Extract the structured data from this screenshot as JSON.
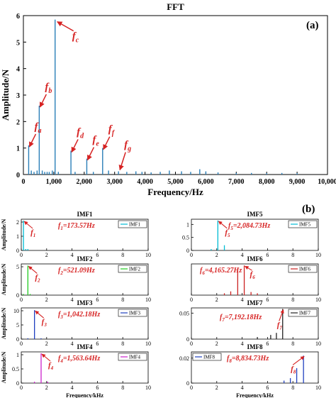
{
  "panel_a_tag": "(a)",
  "panel_b_tag": "(b)",
  "colors": {
    "fft": "#2a7fb8",
    "annotation": "#d62222",
    "imf1": "#00bcd4",
    "imf2": "#22cc22",
    "imf3": "#1f3fbf",
    "imf4": "#cc22cc",
    "imf5": "#00bcd4",
    "imf6": "#cc2222",
    "imf7": "#222222",
    "imf8": "#1f3fbf"
  },
  "chart_data": [
    {
      "type": "bar",
      "title": "FFT",
      "xlabel": "Frequency/Hz",
      "ylabel": "Amplitude/N",
      "xlim": [
        0,
        10000
      ],
      "ylim": [
        0,
        6
      ],
      "xticks": [
        0,
        1000,
        2000,
        3000,
        4000,
        5000,
        6000,
        7000,
        8000,
        9000,
        10000
      ],
      "xtick_labels": [
        "0",
        "1,000",
        "2,000",
        "3,000",
        "4,000",
        "5,000",
        "6,000",
        "7,000",
        "8,000",
        "9,000",
        "10,000"
      ],
      "yticks": [
        0,
        1,
        2,
        3,
        4,
        5,
        6
      ],
      "x": [
        173.57,
        260,
        350,
        450,
        521.09,
        620,
        700,
        780,
        850,
        950,
        1042.18,
        1150,
        1563.64,
        1700,
        2084.73,
        2300,
        2605.5,
        2800,
        3126.5,
        3400,
        3700,
        3900,
        4200,
        4500,
        4800,
        5200,
        5500,
        5800,
        6000,
        6400,
        7000,
        7500,
        8000,
        8500,
        9000
      ],
      "y": [
        1.1,
        0.15,
        0.1,
        0.15,
        2.6,
        0.15,
        0.1,
        0.1,
        0.1,
        0.15,
        5.85,
        0.1,
        0.9,
        0.1,
        0.6,
        0.1,
        1.0,
        0.15,
        0.12,
        0.1,
        0.12,
        0.1,
        0.08,
        0.1,
        0.15,
        0.12,
        0.1,
        0.2,
        0.12,
        0.08,
        0.06,
        0.06,
        0.05,
        0.06,
        0.05
      ],
      "annotations": [
        {
          "label": "f",
          "sub": "a",
          "x": 173.57,
          "y": 1.1
        },
        {
          "label": "f",
          "sub": "b",
          "x": 521.09,
          "y": 2.6
        },
        {
          "label": "f",
          "sub": "c",
          "x": 1042.18,
          "y": 5.85
        },
        {
          "label": "f",
          "sub": "d",
          "x": 1563.64,
          "y": 0.9
        },
        {
          "label": "f",
          "sub": "e",
          "x": 2084.73,
          "y": 0.6
        },
        {
          "label": "f",
          "sub": "f",
          "x": 2605.5,
          "y": 1.0
        },
        {
          "label": "f",
          "sub": "g",
          "x": 3126.5,
          "y": 0.12
        }
      ]
    },
    {
      "type": "bar",
      "title": "IMF1",
      "legend": "IMF1",
      "ylabel": "Amplitude/N",
      "xlim": [
        0,
        10
      ],
      "ylim": [
        0,
        2.2
      ],
      "yticks": [
        0,
        1,
        2
      ],
      "xticks": [
        0,
        2,
        4,
        6,
        8,
        10
      ],
      "xtick_labels": [
        "0",
        "2",
        "4",
        "6",
        "8",
        "10"
      ],
      "x": [
        0.17357,
        0.35,
        0.52
      ],
      "y": [
        2.1,
        0.1,
        0.1
      ],
      "annot_label": "f",
      "annot_sub": "1",
      "freq_text": "=173.57Hz",
      "peak_x": 0.17357,
      "peak_y": 2.1
    },
    {
      "type": "bar",
      "title": "IMF2",
      "legend": "IMF2",
      "ylabel": "Amplitude/N",
      "xlim": [
        0,
        10
      ],
      "ylim": [
        0,
        5.5
      ],
      "yticks": [
        0,
        5
      ],
      "xticks": [
        0,
        2,
        4,
        6,
        8,
        10
      ],
      "xtick_labels": [
        "0",
        "2",
        "4",
        "6",
        "8",
        "10"
      ],
      "x": [
        0.17,
        0.52109,
        0.7
      ],
      "y": [
        0.2,
        5.2,
        0.2
      ],
      "annot_label": "f",
      "annot_sub": "2",
      "freq_text": "=521.09Hz",
      "peak_x": 0.52109,
      "peak_y": 5.2
    },
    {
      "type": "bar",
      "title": "IMF3",
      "legend": "IMF3",
      "ylabel": "Amplitude/N",
      "xlim": [
        0,
        10
      ],
      "ylim": [
        0,
        11
      ],
      "yticks": [
        0,
        5,
        10
      ],
      "xticks": [
        0,
        2,
        4,
        6,
        8,
        10
      ],
      "xtick_labels": [
        "0",
        "2",
        "4",
        "6",
        "8",
        "10"
      ],
      "x": [
        0.52,
        1.04218,
        1.56
      ],
      "y": [
        0.3,
        10.2,
        0.3
      ],
      "annot_label": "f",
      "annot_sub": "3",
      "freq_text": "=1,042.18Hz",
      "peak_x": 1.04218,
      "peak_y": 10.2
    },
    {
      "type": "bar",
      "title": "IMF4",
      "legend": "IMF4",
      "ylabel": "Amplitude/N",
      "xlim": [
        0,
        10
      ],
      "ylim": [
        0,
        1.1
      ],
      "yticks": [
        0,
        0.5,
        1
      ],
      "xticks": [
        0,
        2,
        4,
        6,
        8,
        10
      ],
      "xtick_labels": [
        "0",
        "2",
        "4",
        "6",
        "8",
        "10"
      ],
      "xlabel": "Frequency/kHz",
      "x": [
        1.04,
        1.56364,
        2.08
      ],
      "y": [
        0.05,
        1.05,
        0.05
      ],
      "annot_label": "f",
      "annot_sub": "4",
      "freq_text": "=1,563.64Hz",
      "peak_x": 1.56364,
      "peak_y": 1.05
    },
    {
      "type": "bar",
      "title": "IMF5",
      "legend": "IMF5",
      "ylabel": "",
      "xlim": [
        0,
        10
      ],
      "ylim": [
        0,
        1.2
      ],
      "yticks": [
        0,
        0.5,
        1
      ],
      "xticks": [
        0,
        2,
        4,
        6,
        8,
        10
      ],
      "xtick_labels": [
        "0",
        "2",
        "4",
        "6",
        "8",
        "10"
      ],
      "x": [
        1.56,
        2.08473,
        2.6
      ],
      "y": [
        0.05,
        1.15,
        0.2
      ],
      "annot_label": "f",
      "annot_sub": "5",
      "freq_text": "=2,084.73Hz",
      "peak_x": 2.08473,
      "peak_y": 1.15
    },
    {
      "type": "bar",
      "title": "IMF6",
      "legend": "IMF6",
      "ylabel": "",
      "xlim": [
        0,
        10
      ],
      "ylim": [
        0,
        0.1
      ],
      "yticks": [],
      "xticks": [
        0,
        2,
        4,
        6,
        8,
        10
      ],
      "xtick_labels": [
        "0",
        "2",
        "4",
        "6",
        "8",
        "10"
      ],
      "x": [
        2.6,
        3.1,
        3.65,
        4.16527,
        4.7,
        5.2
      ],
      "y": [
        0.006,
        0.012,
        0.085,
        0.095,
        0.01,
        0.006
      ],
      "annot_label": "f",
      "annot_sub": "6",
      "freq_text": "=4,165.27Hz",
      "peak_x": 4.16527,
      "peak_y": 0.095
    },
    {
      "type": "bar",
      "title": "IMF7",
      "legend": "IMF7",
      "ylabel": "",
      "xlim": [
        0,
        10
      ],
      "ylim": [
        0,
        0.06
      ],
      "yticks": [
        0,
        0.05
      ],
      "xticks": [
        0,
        2,
        4,
        6,
        8,
        10
      ],
      "xtick_labels": [
        "0",
        "2",
        "4",
        "6",
        "8",
        "10"
      ],
      "x": [
        5.2,
        6.25,
        6.7,
        7.19218
      ],
      "y": [
        0.004,
        0.008,
        0.012,
        0.058
      ],
      "annot_label": "f",
      "annot_sub": "7",
      "freq_text": "=7,192.18Hz",
      "peak_x": 7.19218,
      "peak_y": 0.058
    },
    {
      "type": "bar",
      "title": "IMF8",
      "legend": "IMF8",
      "ylabel": "",
      "xlim": [
        0,
        10
      ],
      "ylim": [
        0,
        0.025
      ],
      "yticks": [
        0,
        0.02
      ],
      "xticks": [
        0,
        2,
        4,
        6,
        8,
        10
      ],
      "xtick_labels": [
        "0",
        "2",
        "4",
        "6",
        "8",
        "10"
      ],
      "xlabel": "Frequency/kHz",
      "x": [
        7.3,
        7.8,
        8.3,
        8.83473
      ],
      "y": [
        0.002,
        0.004,
        0.012,
        0.022
      ],
      "annot_label": "f",
      "annot_sub": "8",
      "freq_text": "=8,834.73Hz",
      "peak_x": 8.83473,
      "peak_y": 0.022
    }
  ]
}
